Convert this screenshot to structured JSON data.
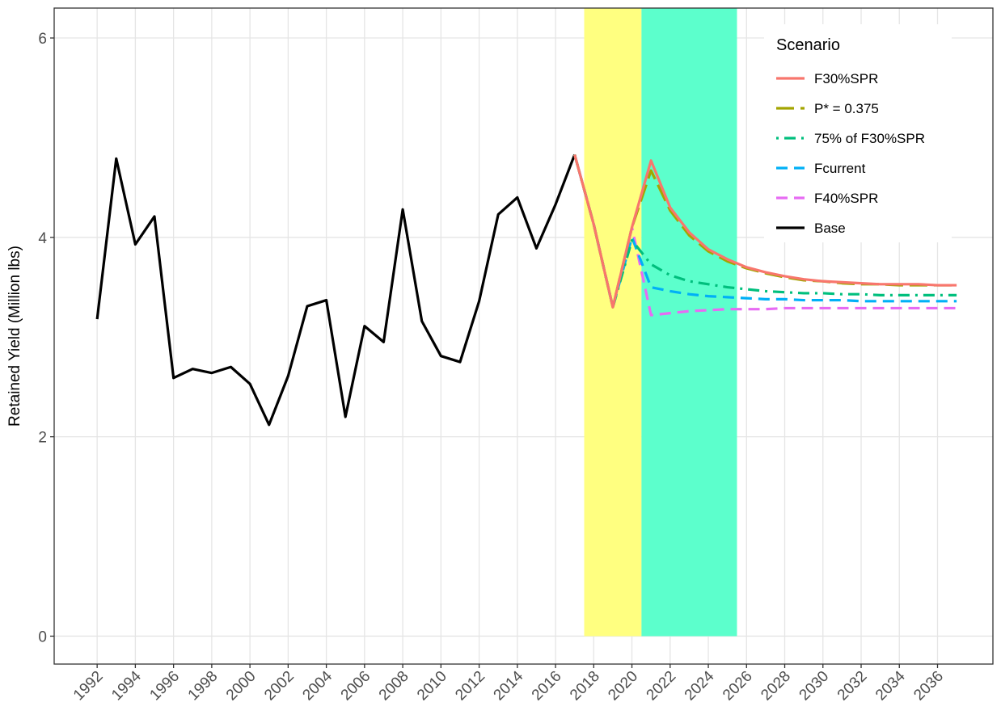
{
  "chart_data": {
    "type": "line",
    "y_label": "Retained Yield (Million lbs)",
    "x": [
      1992,
      1993,
      1994,
      1995,
      1996,
      1997,
      1998,
      1999,
      2000,
      2001,
      2002,
      2003,
      2004,
      2005,
      2006,
      2007,
      2008,
      2009,
      2010,
      2011,
      2012,
      2013,
      2014,
      2015,
      2016,
      2017,
      2018,
      2019,
      2020,
      2021,
      2022,
      2023,
      2024,
      2025,
      2026,
      2027,
      2028,
      2029,
      2030,
      2031,
      2032,
      2033,
      2034,
      2035,
      2036,
      2037
    ],
    "legend_title": "Scenario",
    "series": [
      {
        "name": "F30%SPR",
        "color": "#F8766D",
        "linestyle": "solid",
        "values": [
          null,
          null,
          null,
          null,
          null,
          null,
          null,
          null,
          null,
          null,
          null,
          null,
          null,
          null,
          null,
          null,
          null,
          null,
          null,
          null,
          null,
          null,
          null,
          null,
          null,
          4.83,
          4.13,
          3.3,
          4.1,
          4.77,
          4.3,
          4.05,
          3.88,
          3.78,
          3.7,
          3.65,
          3.61,
          3.58,
          3.56,
          3.55,
          3.54,
          3.53,
          3.53,
          3.53,
          3.52,
          3.52
        ]
      },
      {
        "name": "P* = 0.375",
        "color": "#A3A500",
        "linestyle": "longdash",
        "values": [
          null,
          null,
          null,
          null,
          null,
          null,
          null,
          null,
          null,
          null,
          null,
          null,
          null,
          null,
          null,
          null,
          null,
          null,
          null,
          null,
          null,
          null,
          null,
          null,
          null,
          4.83,
          4.13,
          3.3,
          4.1,
          4.67,
          4.27,
          4.02,
          3.86,
          3.76,
          3.69,
          3.64,
          3.6,
          3.57,
          3.56,
          3.54,
          3.53,
          3.53,
          3.52,
          3.52,
          3.52,
          3.52
        ]
      },
      {
        "name": "75% of F30%SPR",
        "color": "#00BF7D",
        "linestyle": "dotdash",
        "values": [
          null,
          null,
          null,
          null,
          null,
          null,
          null,
          null,
          null,
          null,
          null,
          null,
          null,
          null,
          null,
          null,
          null,
          null,
          null,
          null,
          null,
          null,
          null,
          null,
          null,
          4.83,
          4.13,
          3.3,
          3.97,
          3.73,
          3.62,
          3.56,
          3.53,
          3.5,
          3.48,
          3.46,
          3.45,
          3.44,
          3.44,
          3.43,
          3.43,
          3.42,
          3.42,
          3.42,
          3.42,
          3.42
        ]
      },
      {
        "name": "Fcurrent",
        "color": "#00B0F6",
        "linestyle": "dashed",
        "values": [
          null,
          null,
          null,
          null,
          null,
          null,
          null,
          null,
          null,
          null,
          null,
          null,
          null,
          null,
          null,
          null,
          null,
          null,
          null,
          null,
          null,
          null,
          null,
          null,
          null,
          4.83,
          4.13,
          3.3,
          4.0,
          3.5,
          3.46,
          3.43,
          3.41,
          3.4,
          3.39,
          3.38,
          3.38,
          3.37,
          3.37,
          3.37,
          3.36,
          3.36,
          3.36,
          3.36,
          3.36,
          3.36
        ]
      },
      {
        "name": "F40%SPR",
        "color": "#E76BF3",
        "linestyle": "dashed",
        "values": [
          null,
          null,
          null,
          null,
          null,
          null,
          null,
          null,
          null,
          null,
          null,
          null,
          null,
          null,
          null,
          null,
          null,
          null,
          null,
          null,
          null,
          null,
          null,
          null,
          null,
          4.83,
          4.13,
          3.3,
          4.1,
          3.22,
          3.24,
          3.26,
          3.27,
          3.28,
          3.28,
          3.28,
          3.29,
          3.29,
          3.29,
          3.29,
          3.29,
          3.29,
          3.29,
          3.29,
          3.29,
          3.29
        ]
      },
      {
        "name": "Base",
        "color": "#000000",
        "linestyle": "solid",
        "values": [
          3.18,
          4.79,
          3.93,
          4.21,
          2.59,
          2.68,
          2.64,
          2.7,
          2.53,
          2.12,
          2.61,
          3.31,
          3.37,
          2.2,
          3.11,
          2.95,
          4.28,
          3.16,
          2.81,
          2.75,
          3.36,
          4.23,
          4.4,
          3.89,
          4.33,
          4.83,
          null,
          null,
          null,
          null,
          null,
          null,
          null,
          null,
          null,
          null,
          null,
          null,
          null,
          null,
          null,
          null,
          null,
          null,
          null,
          null
        ]
      }
    ],
    "shaded_regions": [
      {
        "xmin": 2017.5,
        "xmax": 2020.5,
        "ymin": 0,
        "ymax": 6.3,
        "color": "#FFFF80"
      },
      {
        "xmin": 2020.5,
        "xmax": 2025.5,
        "ymin": 0,
        "ymax": 6.3,
        "color": "#5CFFCC"
      }
    ],
    "xlim": [
      1989.75,
      2038.9
    ],
    "ylim": [
      -0.28,
      6.3
    ],
    "xticks": [
      1992,
      1994,
      1996,
      1998,
      2000,
      2002,
      2004,
      2006,
      2008,
      2010,
      2012,
      2014,
      2016,
      2018,
      2020,
      2022,
      2024,
      2026,
      2028,
      2030,
      2032,
      2034,
      2036
    ],
    "yticks": [
      0,
      2,
      4,
      6
    ],
    "grid": true,
    "legend_position": "top-right"
  }
}
